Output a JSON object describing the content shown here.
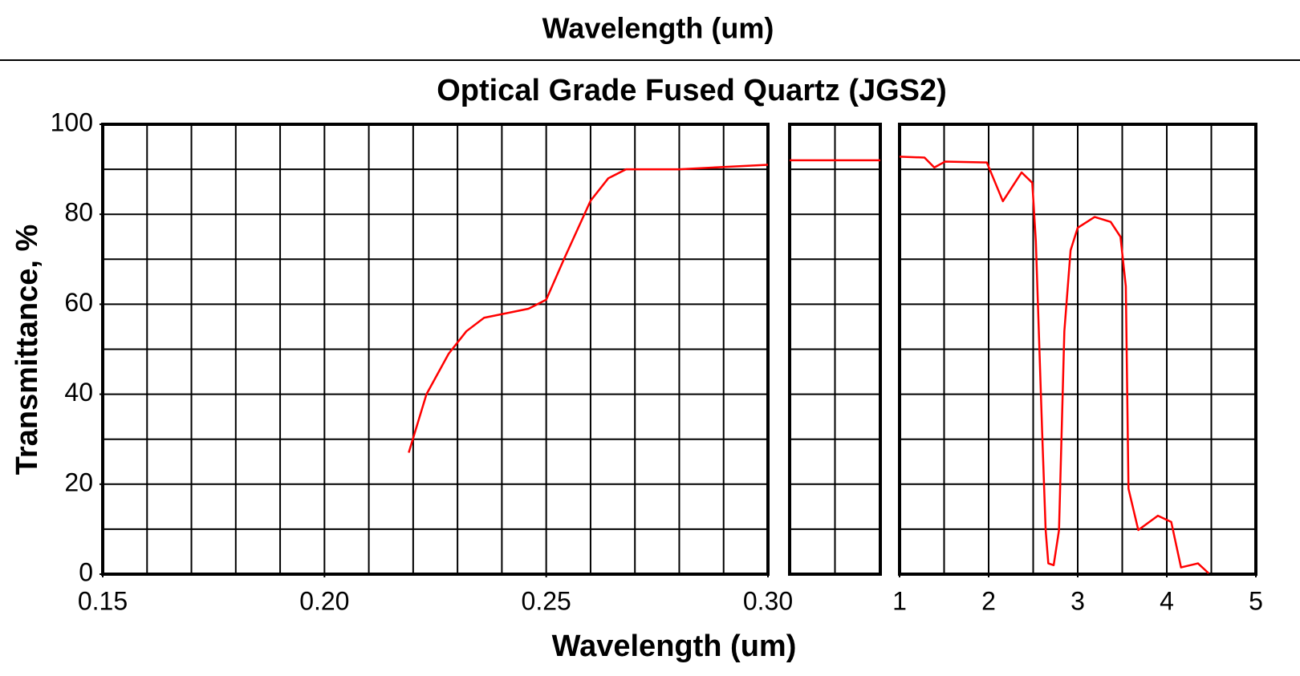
{
  "header": "Wavelength (um)",
  "chart_data": [
    {
      "type": "line",
      "title": "Optical Grade Fused Quartz  (JGS2)",
      "ylabel": "Transmittance, %",
      "xlabel": "Wavelength (um)",
      "xlim": [
        0.15,
        0.3
      ],
      "xticks": [
        0.15,
        {
          "value": 0.2,
          "label": "0.20"
        },
        0.25,
        {
          "value": 0.3,
          "label": "0.30"
        }
      ],
      "xgrid": [
        0.15,
        0.16,
        0.17,
        0.18,
        0.19,
        0.2,
        0.21,
        0.22,
        0.23,
        0.24,
        0.25,
        0.26,
        0.27,
        0.28,
        0.29,
        0.3
      ],
      "ylim": [
        0,
        100
      ],
      "yticks": [
        0,
        20,
        40,
        60,
        80,
        100
      ],
      "ygrid": [
        0,
        10,
        20,
        30,
        40,
        50,
        60,
        70,
        80,
        90,
        100
      ],
      "color": "#ff0000",
      "x": [
        0.219,
        0.223,
        0.228,
        0.232,
        0.236,
        0.241,
        0.246,
        0.25,
        0.254,
        0.26,
        0.264,
        0.268,
        0.28,
        0.29,
        0.3
      ],
      "values": [
        27,
        40,
        49,
        54,
        57,
        58,
        59,
        61,
        70,
        83,
        88,
        90,
        90,
        90.5,
        91
      ]
    },
    {
      "type": "line",
      "xlim": [
        0.3,
        1.0
      ],
      "xgrid": [
        0.3,
        0.65,
        1.0
      ],
      "ylim": [
        0,
        100
      ],
      "ygrid": [
        0,
        10,
        20,
        30,
        40,
        50,
        60,
        70,
        80,
        90,
        100
      ],
      "color": "#ff0000",
      "x": [
        0.3,
        1.0
      ],
      "values": [
        92,
        92
      ]
    },
    {
      "type": "line",
      "xlim": [
        1,
        5
      ],
      "xticks": [
        1,
        2,
        3,
        4,
        5
      ],
      "xgrid": [
        1,
        1.5,
        2,
        2.5,
        3,
        3.5,
        4,
        4.5,
        5
      ],
      "ylim": [
        0,
        100
      ],
      "ygrid": [
        0,
        10,
        20,
        30,
        40,
        50,
        60,
        70,
        80,
        90,
        100
      ],
      "color": "#ff0000",
      "x": [
        1.0,
        1.28,
        1.39,
        1.51,
        1.98,
        2.16,
        2.37,
        2.49,
        2.53,
        2.6,
        2.64,
        2.67,
        2.73,
        2.79,
        2.85,
        2.92,
        3.0,
        3.19,
        3.37,
        3.48,
        3.54,
        3.57,
        3.68,
        3.9,
        4.05,
        4.16,
        4.35,
        4.47
      ],
      "values": [
        92.8,
        92.6,
        90.4,
        91.7,
        91.5,
        82.9,
        89.3,
        87,
        74,
        32,
        9.8,
        2.4,
        2,
        9.8,
        54,
        72,
        77,
        79.4,
        78.3,
        75,
        64,
        19,
        9.8,
        13,
        11.6,
        1.5,
        2.4,
        0.2
      ]
    }
  ]
}
